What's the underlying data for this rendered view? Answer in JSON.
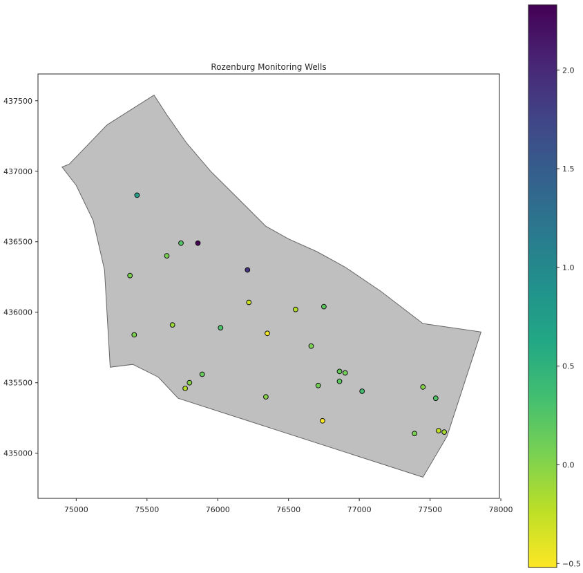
{
  "chart_data": {
    "type": "scatter",
    "title": "Rozenburg Monitoring Wells",
    "xlabel": "",
    "ylabel": "",
    "xlim": [
      74730,
      77990
    ],
    "ylim": [
      434680,
      437690
    ],
    "x_ticks": [
      75000,
      75500,
      76000,
      76500,
      77000,
      77500,
      78000
    ],
    "y_ticks": [
      435000,
      435500,
      436000,
      436500,
      437000,
      437500
    ],
    "grid": false,
    "colormap": "viridis_r",
    "colorbar": {
      "range": [
        -0.52,
        2.33
      ],
      "ticks": [
        -0.5,
        0.0,
        0.5,
        1.0,
        1.5,
        2.0
      ],
      "tick_labels": [
        "−0.5",
        "0.0",
        "0.5",
        "1.0",
        "1.5",
        "2.0"
      ]
    },
    "polygon_fill": "#bfbfbf",
    "polygon_edge": "#666666",
    "polygon": [
      [
        74900,
        437030
      ],
      [
        74950,
        437050
      ],
      [
        75200,
        437310
      ],
      [
        75220,
        437330
      ],
      [
        75550,
        437540
      ],
      [
        75640,
        437400
      ],
      [
        75780,
        437200
      ],
      [
        75950,
        437000
      ],
      [
        76150,
        436800
      ],
      [
        76340,
        436610
      ],
      [
        76500,
        436520
      ],
      [
        76700,
        436430
      ],
      [
        76900,
        436320
      ],
      [
        77150,
        436150
      ],
      [
        77450,
        435920
      ],
      [
        77860,
        435860
      ],
      [
        77620,
        435120
      ],
      [
        77450,
        434830
      ],
      [
        75720,
        435390
      ],
      [
        75580,
        435540
      ],
      [
        75400,
        435630
      ],
      [
        75240,
        435610
      ],
      [
        75200,
        436300
      ],
      [
        75120,
        436650
      ],
      [
        75000,
        436900
      ]
    ],
    "points": [
      {
        "x": 75430,
        "y": 436830,
        "v": 0.75
      },
      {
        "x": 75860,
        "y": 436490,
        "v": 2.33
      },
      {
        "x": 75740,
        "y": 436490,
        "v": 0.25
      },
      {
        "x": 75640,
        "y": 436400,
        "v": 0.05
      },
      {
        "x": 75380,
        "y": 436260,
        "v": 0.05
      },
      {
        "x": 76210,
        "y": 436300,
        "v": 1.9
      },
      {
        "x": 76220,
        "y": 436070,
        "v": -0.3
      },
      {
        "x": 76550,
        "y": 436020,
        "v": -0.2
      },
      {
        "x": 76750,
        "y": 436040,
        "v": 0.2
      },
      {
        "x": 75680,
        "y": 435910,
        "v": -0.1
      },
      {
        "x": 76020,
        "y": 435890,
        "v": 0.3
      },
      {
        "x": 75410,
        "y": 435840,
        "v": 0.05
      },
      {
        "x": 76350,
        "y": 435850,
        "v": -0.45
      },
      {
        "x": 76660,
        "y": 435760,
        "v": 0.05
      },
      {
        "x": 75890,
        "y": 435560,
        "v": 0.15
      },
      {
        "x": 76860,
        "y": 435580,
        "v": 0.15
      },
      {
        "x": 76900,
        "y": 435570,
        "v": 0.1
      },
      {
        "x": 76860,
        "y": 435510,
        "v": 0.2
      },
      {
        "x": 75800,
        "y": 435500,
        "v": 0.0
      },
      {
        "x": 75770,
        "y": 435460,
        "v": -0.2
      },
      {
        "x": 76710,
        "y": 435480,
        "v": 0.1
      },
      {
        "x": 77020,
        "y": 435440,
        "v": 0.35
      },
      {
        "x": 77450,
        "y": 435470,
        "v": 0.0
      },
      {
        "x": 76340,
        "y": 435400,
        "v": 0.0
      },
      {
        "x": 77540,
        "y": 435390,
        "v": 0.25
      },
      {
        "x": 76740,
        "y": 435230,
        "v": -0.5
      },
      {
        "x": 77390,
        "y": 435140,
        "v": 0.05
      },
      {
        "x": 77560,
        "y": 435160,
        "v": -0.25
      },
      {
        "x": 77600,
        "y": 435150,
        "v": -0.15
      }
    ]
  }
}
